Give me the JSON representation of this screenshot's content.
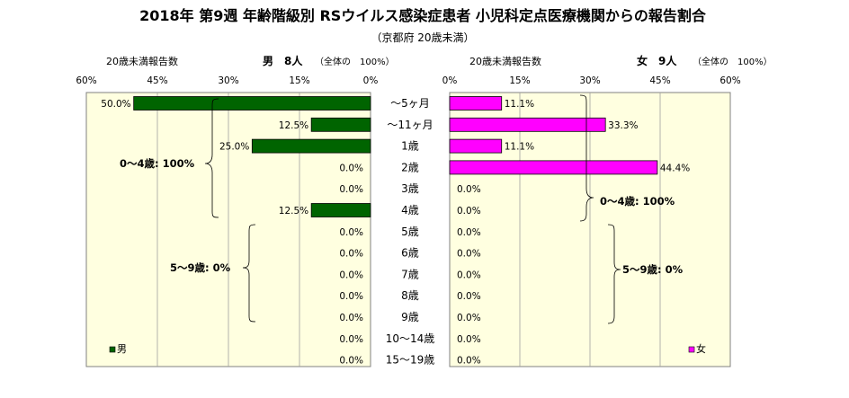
{
  "title": "2018年 第9週 年齢階級別 RSウイルス感染症患者 小児科定点医療機関からの報告割合",
  "subtitle": "（京都府 20歳未満）",
  "left_header": {
    "caption": "20歳未満報告数",
    "gender_count": "男　8人",
    "total_note": "（全体の　100%）"
  },
  "right_header": {
    "caption": "20歳未満報告数",
    "gender_count": "女　9人",
    "total_note": "（全体の　100%）"
  },
  "legend_left": "男",
  "legend_right": "女",
  "colors": {
    "male": "#006400",
    "female": "#ff00ff",
    "plot_bg": "#ffffe0"
  },
  "annotations": {
    "left_0_4": "0～4歳: 100%",
    "left_5_9": "5～9歳: 0%",
    "right_0_4": "0～4歳: 100%",
    "right_5_9": "5～9歳: 0%"
  },
  "chart_data": {
    "type": "bar",
    "orientation": "horizontal",
    "categories": [
      "～5ヶ月",
      "～11ヶ月",
      "1歳",
      "2歳",
      "3歳",
      "4歳",
      "5歳",
      "6歳",
      "7歳",
      "8歳",
      "9歳",
      "10～14歳",
      "15～19歳"
    ],
    "series": [
      {
        "name": "男",
        "values": [
          50.0,
          12.5,
          25.0,
          0.0,
          0.0,
          12.5,
          0.0,
          0.0,
          0.0,
          0.0,
          0.0,
          0.0,
          0.0
        ]
      },
      {
        "name": "女",
        "values": [
          11.1,
          33.3,
          11.1,
          44.4,
          0.0,
          0.0,
          0.0,
          0.0,
          0.0,
          0.0,
          0.0,
          0.0,
          0.0
        ]
      }
    ],
    "data_labels_male": [
      "50.0%",
      "12.5%",
      "25.0%",
      "0.0%",
      "0.0%",
      "12.5%",
      "0.0%",
      "0.0%",
      "0.0%",
      "0.0%",
      "0.0%",
      "0.0%",
      "0.0%"
    ],
    "data_labels_female": [
      "11.1%",
      "33.3%",
      "11.1%",
      "44.4%",
      "0.0%",
      "0.0%",
      "0.0%",
      "0.0%",
      "0.0%",
      "0.0%",
      "0.0%",
      "0.0%",
      "0.0%"
    ],
    "xlim": [
      0,
      60
    ],
    "ticks": [
      0,
      15,
      30,
      45,
      60
    ],
    "tick_labels_left": [
      "0%",
      "15%",
      "30%",
      "45%",
      "60%"
    ],
    "tick_labels_right": [
      "0%",
      "15%",
      "30%",
      "45%",
      "60%"
    ],
    "grid": true,
    "legend_position": "bottom-left / bottom-right"
  }
}
